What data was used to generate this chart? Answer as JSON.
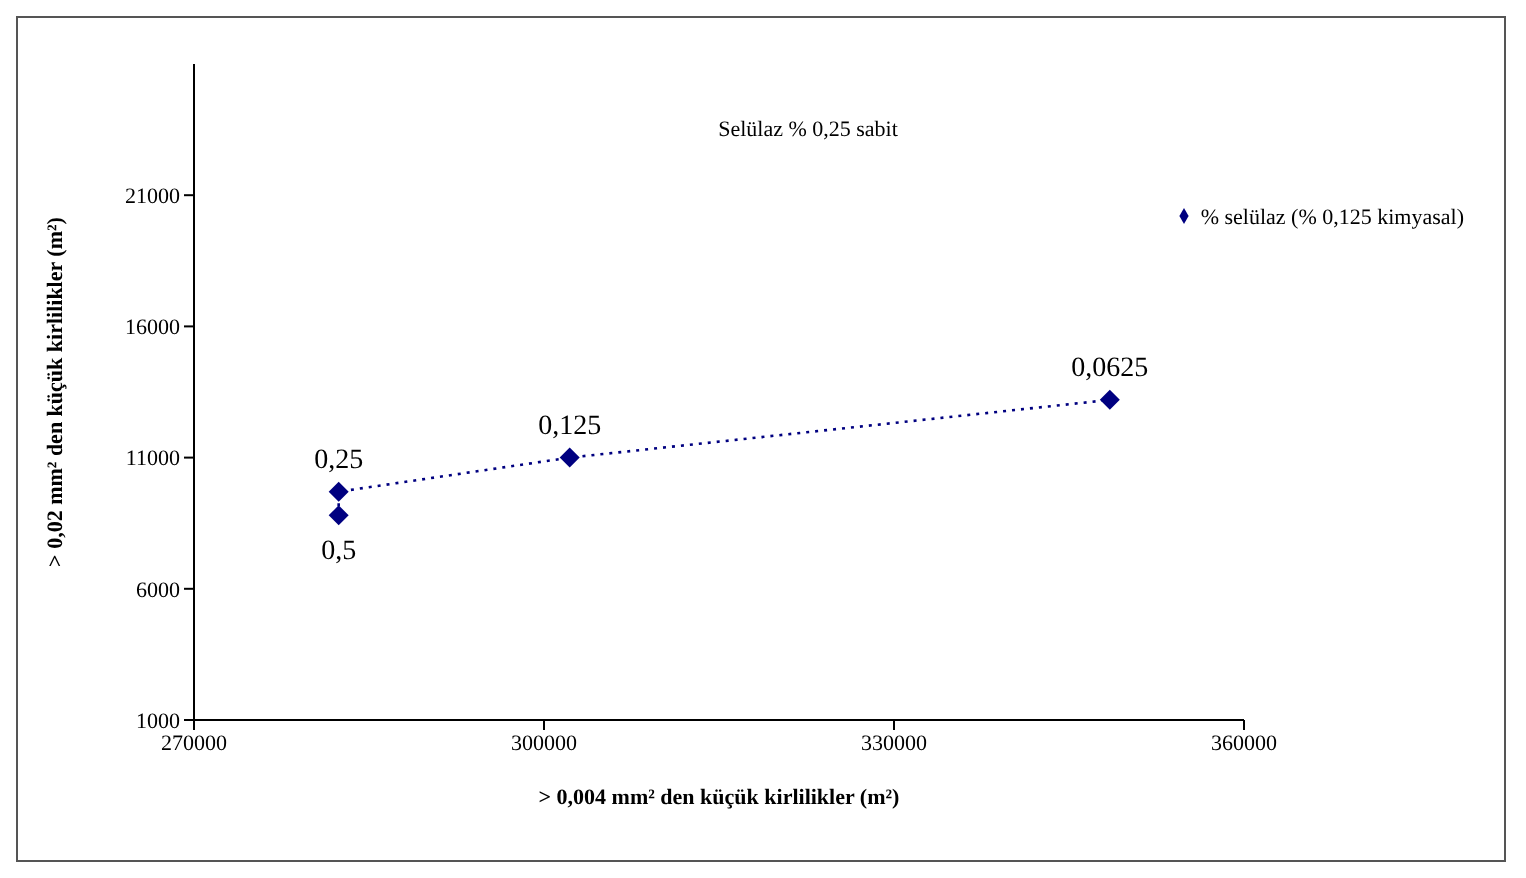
{
  "chart_data": {
    "type": "scatter",
    "title": "Selülaz % 0,25 sabit",
    "xlabel": "> 0,004 mm² den küçük kirlilikler (m²)",
    "ylabel": "> 0,02 mm² den küçük kirlilikler (m²)",
    "xlim": [
      270000,
      360000
    ],
    "xticks": [
      270000,
      300000,
      330000,
      360000
    ],
    "ylim": [
      1000,
      26000
    ],
    "yticks": [
      1000,
      6000,
      11000,
      16000,
      21000
    ],
    "series": [
      {
        "name": "% selülaz (% 0,125 kimyasal)",
        "type": "line",
        "color": "#000080",
        "x": [
          282400,
          282400,
          302200,
          348500
        ],
        "values": [
          8800,
          9700,
          11000,
          13200
        ]
      }
    ],
    "annotations": [
      {
        "text": "0,5",
        "x": 282400,
        "y": 8800
      },
      {
        "text": "0,25",
        "x": 282400,
        "y": 9700
      },
      {
        "text": "0,125",
        "x": 302200,
        "y": 11000
      },
      {
        "text": "0,0625",
        "x": 348500,
        "y": 13200
      }
    ],
    "marker": "diamond",
    "line_style": "dotted",
    "legend": "top right"
  }
}
